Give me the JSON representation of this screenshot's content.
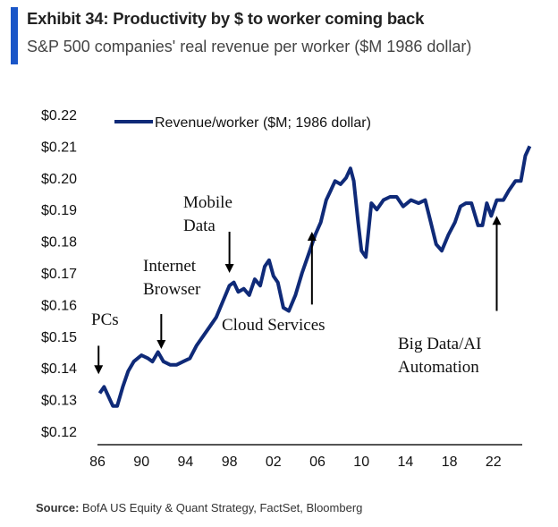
{
  "header": {
    "title": "Exhibit 34: Productivity by $ to worker coming back",
    "subtitle": "S&P 500 companies' real revenue per worker ($M 1986 dollar)",
    "accent": "#1a56c8"
  },
  "source": {
    "label": "Source:",
    "text": " BofA US Equity & Quant Strategy, FactSet, Bloomberg"
  },
  "chart_data": {
    "type": "line",
    "title": "",
    "xlabel": "",
    "ylabel": "",
    "ylim": [
      0.12,
      0.22
    ],
    "xlim": [
      1986,
      2025.5
    ],
    "yticks": [
      "$0.12",
      "$0.13",
      "$0.14",
      "$0.15",
      "$0.16",
      "$0.17",
      "$0.18",
      "$0.19",
      "$0.20",
      "$0.21",
      "$0.22"
    ],
    "xticks": [
      "86",
      "90",
      "94",
      "98",
      "02",
      "06",
      "10",
      "14",
      "18",
      "22"
    ],
    "legend": "top-left",
    "grid": false,
    "series": [
      {
        "name": "Revenue/worker ($M; 1986 dollar)",
        "color": "#0f2a78",
        "x": [
          1986.2,
          1986.6,
          1987.0,
          1987.4,
          1987.8,
          1988.3,
          1988.8,
          1989.3,
          1990.0,
          1990.6,
          1991.0,
          1991.5,
          1992.0,
          1992.6,
          1993.2,
          1993.8,
          1994.4,
          1995.0,
          1995.6,
          1996.2,
          1996.8,
          1997.4,
          1998.0,
          1998.4,
          1998.8,
          1999.3,
          1999.8,
          2000.3,
          2000.8,
          2001.2,
          2001.6,
          2002.0,
          2002.4,
          2002.9,
          2003.4,
          2004.0,
          2004.6,
          2005.2,
          2005.8,
          2006.3,
          2006.8,
          2007.2,
          2007.6,
          2008.1,
          2008.6,
          2009.0,
          2009.3,
          2009.7,
          2010.0,
          2010.4,
          2010.9,
          2011.4,
          2012.0,
          2012.6,
          2013.2,
          2013.8,
          2014.5,
          2015.2,
          2015.8,
          2016.3,
          2016.8,
          2017.3,
          2017.9,
          2018.5,
          2019.0,
          2019.5,
          2020.0,
          2020.6,
          2021.0,
          2021.4,
          2021.8,
          2022.3,
          2022.9,
          2023.4,
          2024.0,
          2024.5,
          2024.9,
          2025.3
        ],
        "y": [
          0.132,
          0.134,
          0.131,
          0.128,
          0.128,
          0.134,
          0.139,
          0.142,
          0.144,
          0.143,
          0.142,
          0.145,
          0.142,
          0.141,
          0.141,
          0.142,
          0.143,
          0.147,
          0.15,
          0.153,
          0.156,
          0.161,
          0.166,
          0.167,
          0.164,
          0.165,
          0.163,
          0.168,
          0.166,
          0.172,
          0.174,
          0.169,
          0.167,
          0.159,
          0.158,
          0.163,
          0.17,
          0.176,
          0.182,
          0.186,
          0.193,
          0.196,
          0.199,
          0.198,
          0.2,
          0.203,
          0.199,
          0.186,
          0.177,
          0.175,
          0.192,
          0.19,
          0.193,
          0.194,
          0.194,
          0.191,
          0.193,
          0.192,
          0.193,
          0.186,
          0.179,
          0.177,
          0.182,
          0.186,
          0.191,
          0.192,
          0.192,
          0.185,
          0.185,
          0.192,
          0.188,
          0.193,
          0.193,
          0.196,
          0.199,
          0.199,
          0.207,
          0.21
        ]
      }
    ],
    "annotations": [
      {
        "text": [
          "PCs"
        ]
      },
      {
        "text": [
          "Internet",
          "Browser"
        ]
      },
      {
        "text": [
          "Mobile",
          "Data"
        ]
      },
      {
        "text": [
          "Cloud Services"
        ]
      },
      {
        "text": [
          "Big Data/AI",
          "Automation"
        ]
      }
    ]
  }
}
